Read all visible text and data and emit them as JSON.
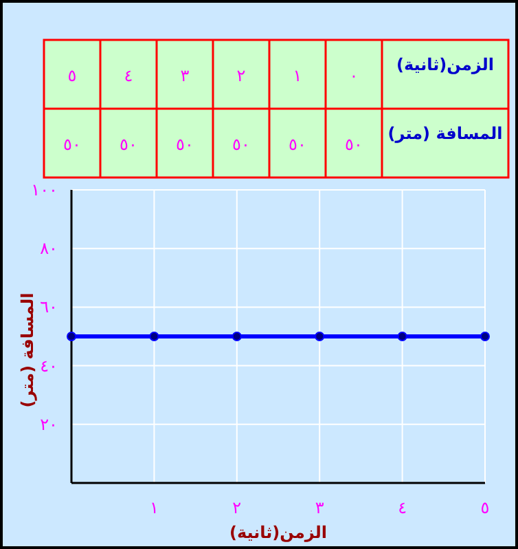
{
  "chart_data": {
    "type": "line",
    "xlabel": "الزمن(ثانية)",
    "ylabel": "المسافة (متر)",
    "annotations": [
      "الزمن(ثانية)",
      "المسافة (متر)",
      "٠",
      "١",
      "٢",
      "٣",
      "٤",
      "٥",
      "٥٠",
      "٥٠",
      "٥٠",
      "٥٠",
      "٥٠",
      "٥٠"
    ],
    "x": [
      0,
      1,
      2,
      3,
      4,
      5
    ],
    "series": [
      {
        "color": "#0000ff",
        "values": [
          50,
          50,
          50,
          50,
          50,
          50
        ]
      }
    ],
    "xlim": [
      0,
      5
    ],
    "xticks": [
      {
        "value": 1,
        "label": "١"
      },
      {
        "value": 2,
        "label": "٢"
      },
      {
        "value": 3,
        "label": "٣"
      },
      {
        "value": 4,
        "label": "٤"
      },
      {
        "value": 5,
        "label": "٥"
      }
    ],
    "ylim": [
      0,
      100
    ],
    "yticks": [
      {
        "value": 20,
        "label": "٢٠"
      },
      {
        "value": 40,
        "label": "٤٠"
      },
      {
        "value": 60,
        "label": "٦٠"
      },
      {
        "value": 80,
        "label": "٨٠"
      },
      {
        "value": 100,
        "label": "١٠٠"
      }
    ],
    "grid": true,
    "marker": "circle",
    "line_style": "solid"
  }
}
